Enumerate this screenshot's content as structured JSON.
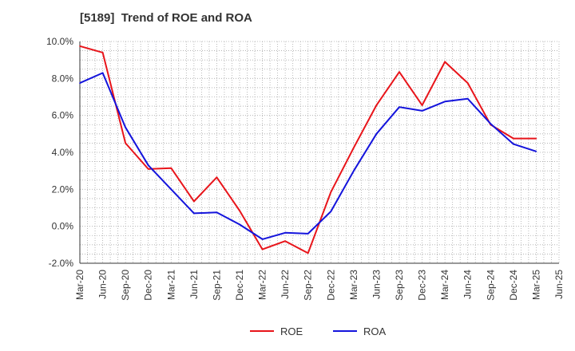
{
  "chart_data": {
    "type": "line",
    "title": "[5189]  Trend of ROE and ROA",
    "xlabel": "",
    "ylabel": "",
    "categories": [
      "Mar-20",
      "Jun-20",
      "Sep-20",
      "Dec-20",
      "Mar-21",
      "Jun-21",
      "Sep-21",
      "Dec-21",
      "Mar-22",
      "Jun-22",
      "Sep-22",
      "Dec-22",
      "Mar-23",
      "Jun-23",
      "Sep-23",
      "Dec-23",
      "Mar-24",
      "Jun-24",
      "Sep-24",
      "Dec-24",
      "Mar-25",
      "Jun-25"
    ],
    "ylim": [
      -2.0,
      10.0
    ],
    "yticks": [
      -2.0,
      0.0,
      2.0,
      4.0,
      6.0,
      8.0,
      10.0
    ],
    "ytick_labels": [
      "-2.0%",
      "0.0%",
      "2.0%",
      "4.0%",
      "6.0%",
      "8.0%",
      "10.0%"
    ],
    "grid": true,
    "legend_position": "bottom",
    "series": [
      {
        "name": "ROE",
        "color": "#e8141a",
        "values": [
          9.75,
          9.4,
          4.5,
          3.1,
          3.15,
          1.35,
          2.65,
          0.85,
          -1.25,
          -0.8,
          -1.45,
          1.85,
          4.25,
          6.55,
          8.35,
          6.55,
          8.9,
          7.75,
          5.5,
          4.75,
          4.75,
          null
        ]
      },
      {
        "name": "ROA",
        "color": "#1414dc",
        "values": [
          7.75,
          8.3,
          5.35,
          3.3,
          2.0,
          0.7,
          0.75,
          0.1,
          -0.7,
          -0.35,
          -0.4,
          0.8,
          3.0,
          5.0,
          6.45,
          6.25,
          6.75,
          6.9,
          5.55,
          4.45,
          4.05,
          null
        ]
      }
    ]
  }
}
